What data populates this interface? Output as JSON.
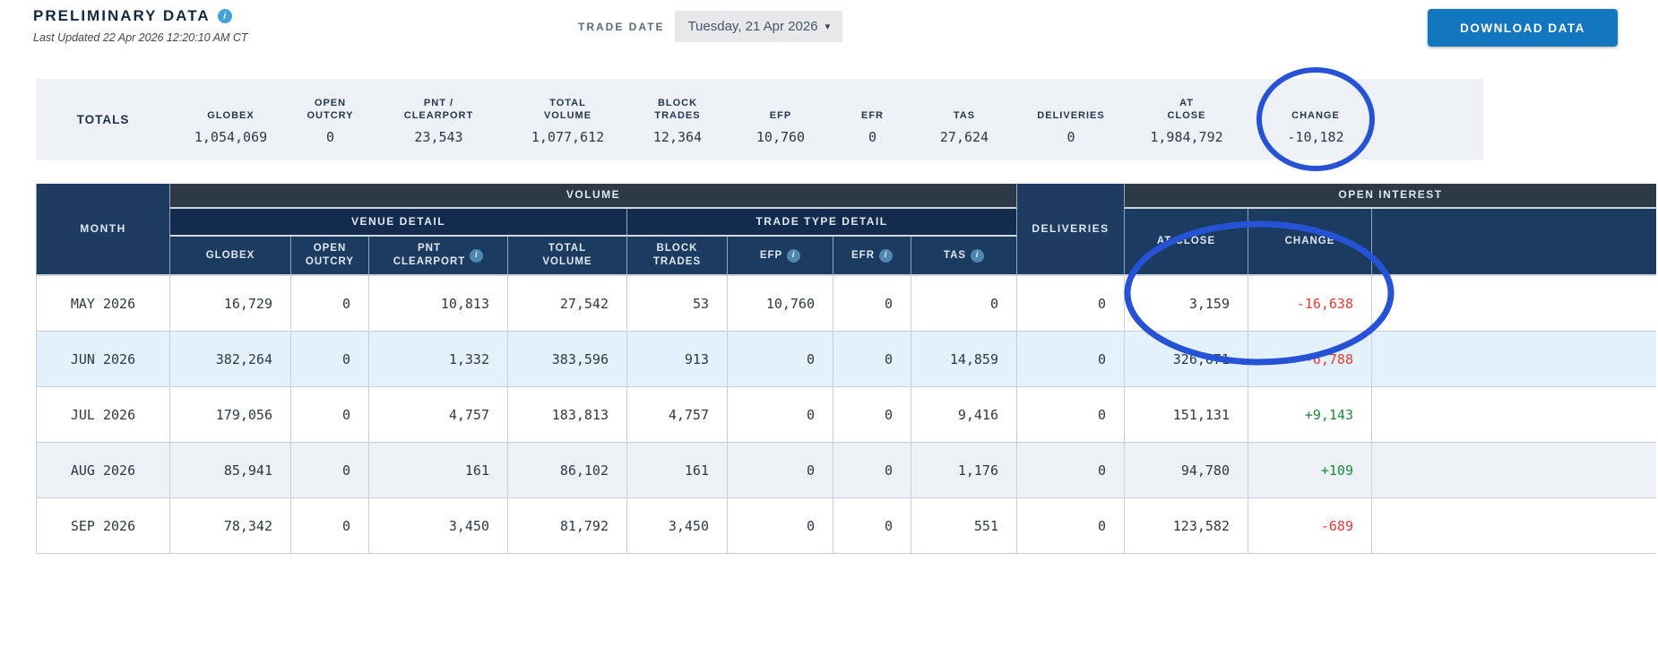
{
  "header": {
    "title": "PRELIMINARY DATA",
    "last_updated": "Last Updated 22 Apr 2026 12:20:10 AM CT",
    "trade_date_label": "TRADE DATE",
    "trade_date_value": "Tuesday, 21 Apr 2026",
    "download_label": "DOWNLOAD DATA"
  },
  "totals": {
    "label": "TOTALS",
    "items": [
      {
        "label": "GLOBEX",
        "value": "1,054,069"
      },
      {
        "label": "OPEN\nOUTCRY",
        "value": "0"
      },
      {
        "label": "PNT /\nCLEARPORT",
        "value": "23,543"
      },
      {
        "label": "TOTAL\nVOLUME",
        "value": "1,077,612"
      },
      {
        "label": "BLOCK\nTRADES",
        "value": "12,364"
      },
      {
        "label": "EFP",
        "value": "10,760"
      },
      {
        "label": "EFR",
        "value": "0"
      },
      {
        "label": "TAS",
        "value": "27,624"
      },
      {
        "label": "DELIVERIES",
        "value": "0"
      },
      {
        "label": "AT\nCLOSE",
        "value": "1,984,792"
      },
      {
        "label": "CHANGE",
        "value": "-10,182"
      }
    ]
  },
  "table": {
    "group_headers": {
      "month": "MONTH",
      "volume": "VOLUME",
      "venue_detail": "VENUE DETAIL",
      "trade_type_detail": "TRADE TYPE DETAIL",
      "deliveries": "DELIVERIES",
      "open_interest": "OPEN INTEREST",
      "at_close": "AT CLOSE",
      "change": "CHANGE"
    },
    "columns": [
      {
        "key": "globex",
        "label": "GLOBEX",
        "info": false
      },
      {
        "key": "open-outcry",
        "label": "OPEN\nOUTCRY",
        "info": false
      },
      {
        "key": "pnt-clearport",
        "label": "PNT\nCLEARPORT",
        "info": true
      },
      {
        "key": "total-volume",
        "label": "TOTAL\nVOLUME",
        "info": false
      },
      {
        "key": "block-trades",
        "label": "BLOCK\nTRADES",
        "info": false
      },
      {
        "key": "efp",
        "label": "EFP",
        "info": true
      },
      {
        "key": "efr",
        "label": "EFR",
        "info": true
      },
      {
        "key": "tas",
        "label": "TAS",
        "info": true
      }
    ],
    "value_keys": [
      "globex",
      "open-outcry",
      "pnt-clearport",
      "total-volume",
      "block-trades",
      "efp",
      "efr",
      "tas",
      "deliveries",
      "at-close"
    ],
    "rows": [
      {
        "month": "MAY 2026",
        "values": [
          "16,729",
          "0",
          "10,813",
          "27,542",
          "53",
          "10,760",
          "0",
          "0",
          "0",
          "3,159"
        ],
        "change": "-16,638"
      },
      {
        "month": "JUN 2026",
        "values": [
          "382,264",
          "0",
          "1,332",
          "383,596",
          "913",
          "0",
          "0",
          "14,859",
          "0",
          "326,671"
        ],
        "change": "-6,788"
      },
      {
        "month": "JUL 2026",
        "values": [
          "179,056",
          "0",
          "4,757",
          "183,813",
          "4,757",
          "0",
          "0",
          "9,416",
          "0",
          "151,131"
        ],
        "change": "+9,143"
      },
      {
        "month": "AUG 2026",
        "values": [
          "85,941",
          "0",
          "161",
          "86,102",
          "161",
          "0",
          "0",
          "1,176",
          "0",
          "94,780"
        ],
        "change": "+109"
      },
      {
        "month": "SEP 2026",
        "values": [
          "78,342",
          "0",
          "3,450",
          "81,792",
          "3,450",
          "0",
          "0",
          "551",
          "0",
          "123,582"
        ],
        "change": "-689"
      }
    ]
  },
  "colors": {
    "accent_blue": "#1277bf",
    "annotation_blue": "#2653d6",
    "negative_red": "#e53935",
    "positive_green": "#1e8a3b",
    "header_navy": "#1c3b60",
    "band_dark": "#2d3a46",
    "band_navy": "#132c4e",
    "totals_bg": "#edf1f6",
    "alt_row_blue": "#e3f1fa",
    "alt_row_gray": "#edf0f4"
  }
}
